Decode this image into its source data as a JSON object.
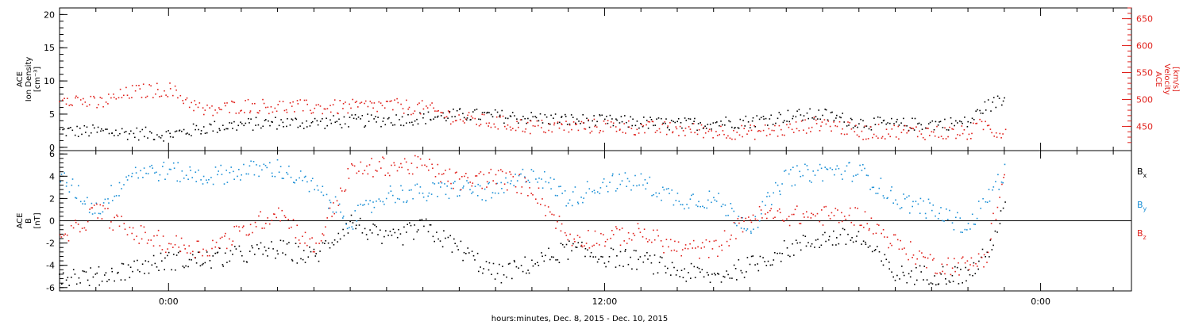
{
  "colors": {
    "black": "#000000",
    "red": "#e0201b",
    "blue": "#1a8fd6"
  },
  "x_axis": {
    "title": "hours:minutes, Dec.  8, 2015 - Dec. 10, 2015",
    "tick_labels": [
      {
        "label": "0:00",
        "hour": 0
      },
      {
        "label": "12:00",
        "hour": 12
      },
      {
        "label": "0:00",
        "hour": 24
      }
    ]
  },
  "chart_data": [
    {
      "type": "scatter",
      "title": "",
      "xrange_hours": [
        -3.0,
        26.5
      ],
      "left_axis": {
        "label_lines": [
          "ACE",
          "Ion Density",
          "[cm⁻³]"
        ],
        "ylim": [
          -0.5,
          21
        ],
        "ticks": [
          0,
          5,
          10,
          15,
          20
        ],
        "tick_labels": [
          "0",
          "5",
          "10",
          "15",
          "20"
        ]
      },
      "right_axis": {
        "label_lines": [
          "ACE",
          "Velocity",
          "[km/s]"
        ],
        "ylim": [
          405,
          670
        ],
        "ticks": [
          450,
          500,
          550,
          600,
          650
        ],
        "tick_labels": [
          "450",
          "500",
          "550",
          "600",
          "650"
        ],
        "color": "#e0201b"
      },
      "series": [
        {
          "color": "#000000",
          "axis": "left",
          "x": [
            -3,
            -2,
            -1,
            0,
            1,
            2,
            3,
            4,
            5,
            6,
            7,
            8,
            9,
            10,
            11,
            12,
            13,
            14,
            15,
            16,
            17,
            18,
            19,
            20,
            21,
            22,
            22.4,
            22.8,
            23.0
          ],
          "y": [
            2.5,
            2.5,
            2.2,
            2.0,
            3.0,
            3.5,
            3.8,
            3.8,
            4.0,
            4.2,
            4.5,
            5.0,
            4.8,
            4.5,
            4.2,
            4.0,
            3.8,
            3.5,
            3.8,
            4.0,
            4.8,
            5.0,
            3.8,
            3.5,
            3.6,
            3.8,
            6.0,
            7.0,
            7.2
          ]
        },
        {
          "color": "#e0201b",
          "axis": "right",
          "x": [
            -3,
            -2,
            -1,
            0,
            1,
            2,
            3,
            4,
            5,
            6,
            7,
            8,
            9,
            10,
            11,
            12,
            13,
            14,
            15,
            16,
            17,
            18,
            19,
            20,
            21,
            22,
            22.4,
            22.8,
            23.0
          ],
          "y": [
            508,
            492,
            515,
            520,
            478,
            490,
            488,
            486,
            487,
            490,
            485,
            465,
            458,
            450,
            450,
            452,
            448,
            445,
            442,
            440,
            445,
            458,
            440,
            442,
            440,
            438,
            455,
            440,
            445
          ]
        }
      ]
    },
    {
      "type": "scatter",
      "title": "",
      "xrange_hours": [
        -3.0,
        26.5
      ],
      "left_axis": {
        "label_lines": [
          "ACE",
          "B",
          "[nT]"
        ],
        "ylim": [
          -6.3,
          6.3
        ],
        "ticks": [
          -6,
          -4,
          -2,
          0,
          2,
          4,
          6
        ],
        "tick_labels": [
          "-6",
          "-4",
          "-2",
          "0",
          "2",
          "4",
          "6"
        ]
      },
      "zero_line": 0,
      "series": [
        {
          "name": "Bx",
          "color": "#000000",
          "x": [
            -3,
            -2,
            -1,
            0,
            1,
            2,
            3,
            4,
            5,
            6,
            7,
            8,
            9,
            10,
            11,
            12,
            13,
            14,
            15,
            16,
            17,
            18,
            19,
            20,
            21,
            22,
            22.5,
            23.0
          ],
          "y": [
            -4.8,
            -5.0,
            -4.2,
            -3.5,
            -3.5,
            -3.0,
            -2.5,
            -3.2,
            0.0,
            -1.8,
            -0.5,
            -2.5,
            -4.8,
            -3.8,
            -2.5,
            -3.2,
            -3.5,
            -4.5,
            -5.0,
            -4.0,
            -2.5,
            -1.5,
            -1.5,
            -4.8,
            -4.8,
            -4.8,
            -3.0,
            1.0
          ]
        },
        {
          "name": "By",
          "color": "#1a8fd6",
          "x": [
            -3,
            -2,
            -1,
            0,
            1,
            2,
            3,
            4,
            5,
            6,
            7,
            8,
            9,
            10,
            11,
            12,
            13,
            14,
            15,
            16,
            17,
            18,
            19,
            20,
            21,
            22,
            22.5,
            23.0
          ],
          "y": [
            4.0,
            1.0,
            4.5,
            4.5,
            4.0,
            4.5,
            4.8,
            3.0,
            0.0,
            2.5,
            2.5,
            3.0,
            2.5,
            4.5,
            2.0,
            3.5,
            3.5,
            2.0,
            2.0,
            -0.5,
            4.0,
            4.5,
            4.5,
            2.0,
            1.0,
            -0.5,
            2.0,
            4.5
          ]
        },
        {
          "name": "Bz",
          "color": "#e0201b",
          "x": [
            -3,
            -2,
            -1,
            0,
            1,
            2,
            3,
            4,
            5,
            6,
            7,
            8,
            9,
            10,
            11,
            12,
            13,
            14,
            15,
            16,
            17,
            18,
            19,
            20,
            21,
            22,
            22.5,
            23.0
          ],
          "y": [
            -2.0,
            1.0,
            -1.0,
            -2.0,
            -2.5,
            -1.0,
            1.0,
            -2.5,
            4.5,
            5.0,
            5.0,
            3.5,
            4.0,
            3.0,
            -1.5,
            -1.5,
            -1.0,
            -2.5,
            -2.5,
            0.5,
            0.5,
            0.5,
            0.5,
            -2.0,
            -3.8,
            -4.0,
            -3.0,
            4.5
          ]
        }
      ],
      "legend": [
        {
          "text": "B",
          "sub": "x",
          "color": "#000000"
        },
        {
          "text": "B",
          "sub": "y",
          "color": "#1a8fd6"
        },
        {
          "text": "B",
          "sub": "z",
          "color": "#e0201b"
        }
      ]
    }
  ]
}
